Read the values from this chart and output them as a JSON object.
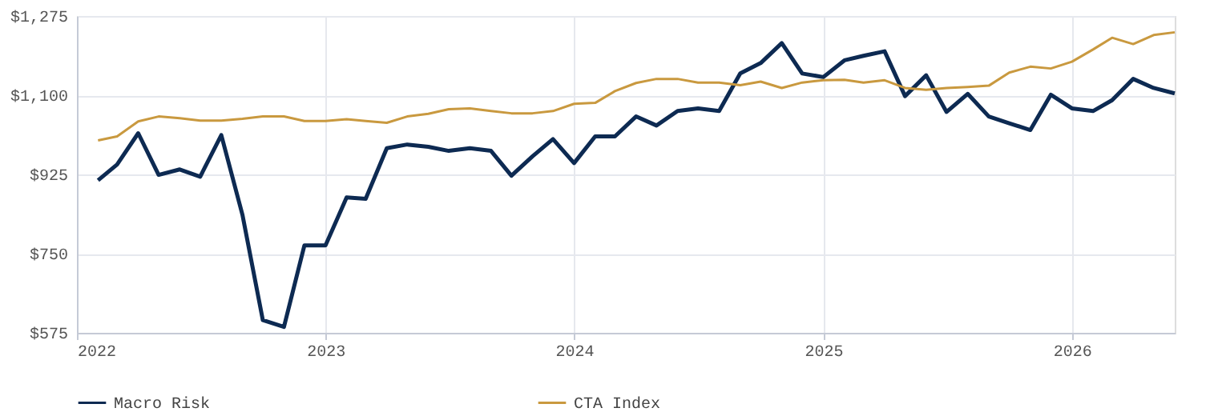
{
  "chart_data": {
    "type": "line",
    "x": [
      "2022-02",
      "2022-03",
      "2022-04",
      "2022-05",
      "2022-06",
      "2022-07",
      "2022-08",
      "2022-09",
      "2022-10",
      "2022-11",
      "2022-12",
      "2023-01",
      "2023-02",
      "2023-03",
      "2023-04",
      "2023-05",
      "2023-06",
      "2023-07",
      "2023-08",
      "2023-09",
      "2023-10",
      "2023-11",
      "2023-12",
      "2024-01",
      "2024-02",
      "2024-03",
      "2024-04",
      "2024-05",
      "2024-06",
      "2024-07",
      "2024-08",
      "2024-09",
      "2024-10",
      "2024-11",
      "2024-12",
      "2025-01",
      "2025-02",
      "2025-03",
      "2025-04",
      "2025-05",
      "2025-06",
      "2025-07",
      "2025-08",
      "2025-09",
      "2025-10",
      "2025-11",
      "2025-12",
      "2026-01",
      "2026-02",
      "2026-03",
      "2026-04",
      "2026-05",
      "2026-06"
    ],
    "series": [
      {
        "name": "Macro Risk",
        "color": "#0d2a52",
        "values": [
          912,
          947,
          1016,
          924,
          936,
          920,
          1012,
          836,
          603,
          588,
          768,
          768,
          874,
          871,
          983,
          991,
          986,
          977,
          983,
          977,
          922,
          965,
          1003,
          950,
          1009,
          1009,
          1053,
          1033,
          1065,
          1071,
          1065,
          1148,
          1171,
          1215,
          1148,
          1140,
          1177,
          1187,
          1197,
          1098,
          1144,
          1063,
          1103,
          1053,
          1038,
          1023,
          1101,
          1071,
          1065,
          1089,
          1136,
          1116,
          1104
        ]
      },
      {
        "name": "CTA Index",
        "color": "#c9993f",
        "values": [
          1000,
          1009,
          1042,
          1053,
          1049,
          1044,
          1044,
          1048,
          1053,
          1053,
          1043,
          1043,
          1047,
          1043,
          1039,
          1053,
          1059,
          1069,
          1071,
          1065,
          1060,
          1060,
          1065,
          1081,
          1083,
          1109,
          1127,
          1136,
          1136,
          1128,
          1128,
          1122,
          1130,
          1116,
          1128,
          1133,
          1134,
          1128,
          1133,
          1116,
          1112,
          1116,
          1118,
          1121,
          1150,
          1163,
          1159,
          1174,
          1201,
          1227,
          1213,
          1233,
          1239
        ]
      }
    ],
    "xlim": [
      "2022",
      "2026-06"
    ],
    "xticks": [
      {
        "value": "2022",
        "label": "2022"
      },
      {
        "value": "2023",
        "label": "2023"
      },
      {
        "value": "2024",
        "label": "2024"
      },
      {
        "value": "2025",
        "label": "2025"
      },
      {
        "value": "2026",
        "label": "2026"
      }
    ],
    "ylim": [
      575,
      1275
    ],
    "yticks": [
      {
        "value": 575,
        "label": "$575"
      },
      {
        "value": 750,
        "label": "$750"
      },
      {
        "value": 925,
        "label": "$925"
      },
      {
        "value": 1100,
        "label": "$1,100"
      },
      {
        "value": 1275,
        "label": "$1,275"
      }
    ],
    "grid": true,
    "legend": "bottom",
    "marker": "none",
    "line_style": "solid"
  }
}
